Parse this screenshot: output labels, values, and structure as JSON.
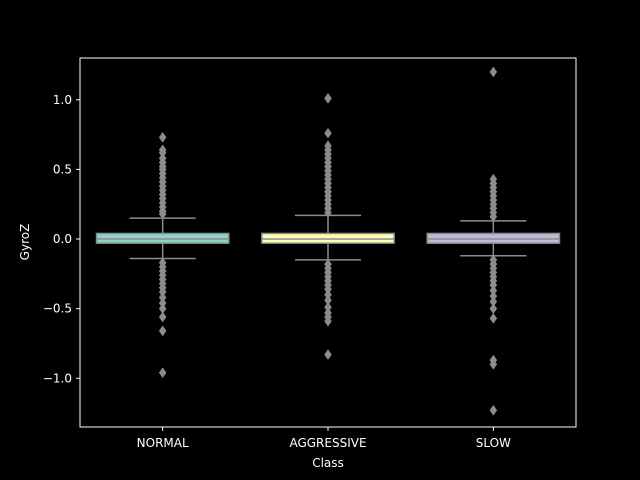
{
  "chart_data": {
    "type": "box",
    "xlabel": "Class",
    "ylabel": "GyroZ",
    "ylim": [
      -1.35,
      1.3
    ],
    "yticks": [
      -1.0,
      -0.5,
      0.0,
      0.5,
      1.0
    ],
    "ytick_labels": [
      "−1.0",
      "−0.5",
      "0.0",
      "0.5",
      "1.0"
    ],
    "categories": [
      "NORMAL",
      "AGGRESSIVE",
      "SLOW"
    ],
    "colors": {
      "background": "#000000",
      "axes": "#ffffff",
      "box_line": "#8c8c8c",
      "flier": "#8c8c8c"
    },
    "boxes": [
      {
        "category": "NORMAL",
        "color": "#8dd3c7",
        "q1": -0.03,
        "median": 0.0,
        "q3": 0.04,
        "whisker_low": -0.14,
        "whisker_high": 0.15,
        "fliers": [
          0.73,
          0.64,
          0.62,
          0.58,
          0.55,
          0.52,
          0.5,
          0.47,
          0.44,
          0.41,
          0.38,
          0.35,
          0.32,
          0.29,
          0.26,
          0.23,
          0.2,
          0.18,
          -0.17,
          -0.2,
          -0.23,
          -0.26,
          -0.29,
          -0.32,
          -0.35,
          -0.38,
          -0.42,
          -0.46,
          -0.5,
          -0.56,
          -0.66,
          -0.96
        ]
      },
      {
        "category": "AGGRESSIVE",
        "color": "#ffffb3",
        "q1": -0.03,
        "median": 0.0,
        "q3": 0.04,
        "whisker_low": -0.15,
        "whisker_high": 0.17,
        "fliers": [
          1.01,
          0.76,
          0.67,
          0.64,
          0.61,
          0.58,
          0.55,
          0.52,
          0.49,
          0.46,
          0.43,
          0.4,
          0.37,
          0.34,
          0.31,
          0.28,
          0.25,
          0.22,
          0.19,
          -0.18,
          -0.21,
          -0.24,
          -0.27,
          -0.3,
          -0.33,
          -0.36,
          -0.4,
          -0.44,
          -0.49,
          -0.53,
          -0.56,
          -0.59,
          -0.83
        ]
      },
      {
        "category": "SLOW",
        "color": "#bebada",
        "q1": -0.03,
        "median": 0.0,
        "q3": 0.04,
        "whisker_low": -0.12,
        "whisker_high": 0.13,
        "fliers": [
          1.2,
          0.43,
          0.4,
          0.37,
          0.34,
          0.31,
          0.28,
          0.25,
          0.22,
          0.19,
          0.16,
          -0.15,
          -0.18,
          -0.21,
          -0.24,
          -0.27,
          -0.3,
          -0.33,
          -0.37,
          -0.41,
          -0.45,
          -0.5,
          -0.57,
          -0.87,
          -0.9,
          -1.23
        ]
      }
    ]
  }
}
